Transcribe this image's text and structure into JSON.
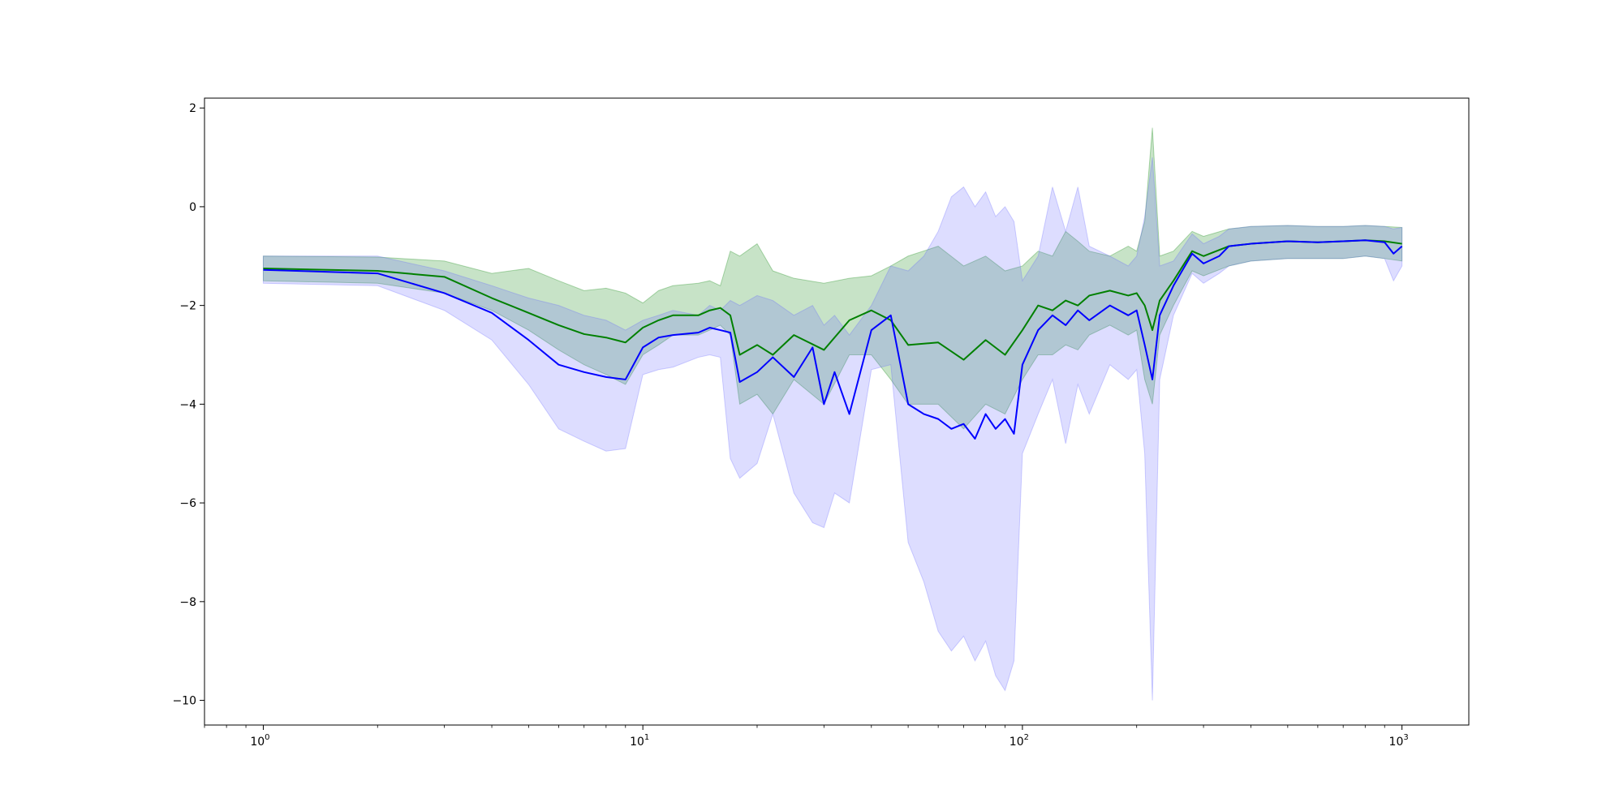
{
  "chart_data": {
    "type": "line",
    "title": "",
    "xlabel": "",
    "ylabel": "",
    "xscale": "log",
    "xlim": [
      0.7,
      1500
    ],
    "ylim": [
      -10.5,
      2.2
    ],
    "grid": false,
    "legend": "none",
    "x_ticks": [
      {
        "value": 1,
        "base": "10",
        "exp": "0"
      },
      {
        "value": 10,
        "base": "10",
        "exp": "1"
      },
      {
        "value": 100,
        "base": "10",
        "exp": "2"
      },
      {
        "value": 1000,
        "base": "10",
        "exp": "3"
      }
    ],
    "y_ticks": [
      {
        "value": 2,
        "label": "2"
      },
      {
        "value": 0,
        "label": "0"
      },
      {
        "value": -2,
        "label": "−2"
      },
      {
        "value": -4,
        "label": "−4"
      },
      {
        "value": -6,
        "label": "−6"
      },
      {
        "value": -8,
        "label": "−8"
      },
      {
        "value": -10,
        "label": "−10"
      }
    ],
    "series": [
      {
        "color": "#008000",
        "band_color": "#008000",
        "x": [
          1,
          2,
          3,
          4,
          5,
          6,
          7,
          8,
          9,
          10,
          11,
          12,
          14,
          15,
          16,
          17,
          18,
          20,
          22,
          25,
          30,
          35,
          40,
          45,
          50,
          60,
          70,
          80,
          90,
          100,
          110,
          120,
          130,
          140,
          150,
          170,
          190,
          200,
          210,
          220,
          230,
          250,
          280,
          300,
          350,
          400,
          500,
          600,
          700,
          800,
          900,
          1000
        ],
        "y": [
          -1.25,
          -1.3,
          -1.42,
          -1.85,
          -2.15,
          -2.4,
          -2.58,
          -2.65,
          -2.75,
          -2.45,
          -2.3,
          -2.2,
          -2.2,
          -2.1,
          -2.05,
          -2.2,
          -3.0,
          -2.8,
          -3.0,
          -2.6,
          -2.9,
          -2.3,
          -2.1,
          -2.3,
          -2.8,
          -2.75,
          -3.1,
          -2.7,
          -3.0,
          -2.5,
          -2.0,
          -2.1,
          -1.9,
          -2.0,
          -1.8,
          -1.7,
          -1.8,
          -1.75,
          -2.0,
          -2.5,
          -1.9,
          -1.5,
          -0.9,
          -1.0,
          -0.8,
          -0.75,
          -0.7,
          -0.72,
          -0.7,
          -0.68,
          -0.7,
          -0.75
        ],
        "lower": [
          -1.5,
          -1.55,
          -1.75,
          -2.1,
          -2.5,
          -2.9,
          -3.2,
          -3.4,
          -3.6,
          -3.0,
          -2.8,
          -2.6,
          -2.6,
          -2.5,
          -2.4,
          -2.6,
          -4.0,
          -3.8,
          -4.2,
          -3.5,
          -4.0,
          -3.0,
          -3.0,
          -3.5,
          -4.0,
          -4.0,
          -4.5,
          -4.0,
          -4.2,
          -3.5,
          -3.0,
          -3.0,
          -2.8,
          -2.9,
          -2.6,
          -2.4,
          -2.6,
          -2.5,
          -3.5,
          -4.0,
          -2.6,
          -2.0,
          -1.3,
          -1.4,
          -1.2,
          -1.1,
          -1.05,
          -1.05,
          -1.05,
          -1.0,
          -1.05,
          -1.1
        ],
        "upper": [
          -1.0,
          -1.02,
          -1.1,
          -1.35,
          -1.25,
          -1.5,
          -1.7,
          -1.65,
          -1.75,
          -1.95,
          -1.7,
          -1.6,
          -1.55,
          -1.5,
          -1.6,
          -0.9,
          -1.0,
          -0.75,
          -1.3,
          -1.45,
          -1.55,
          -1.45,
          -1.4,
          -1.2,
          -1.0,
          -0.8,
          -1.2,
          -1.0,
          -1.3,
          -1.2,
          -0.9,
          -1.0,
          -0.5,
          -0.7,
          -0.9,
          -1.0,
          -0.8,
          -0.9,
          -0.3,
          1.6,
          -1.0,
          -0.9,
          -0.5,
          -0.6,
          -0.45,
          -0.4,
          -0.38,
          -0.4,
          -0.4,
          -0.38,
          -0.4,
          -0.42
        ]
      },
      {
        "color": "#0000ff",
        "band_color": "#6666ff",
        "x": [
          1,
          2,
          3,
          4,
          5,
          6,
          7,
          8,
          9,
          10,
          11,
          12,
          14,
          15,
          16,
          17,
          18,
          20,
          22,
          25,
          28,
          30,
          32,
          35,
          40,
          45,
          50,
          55,
          60,
          65,
          70,
          75,
          80,
          85,
          90,
          95,
          100,
          110,
          120,
          130,
          140,
          150,
          170,
          190,
          200,
          210,
          220,
          230,
          250,
          280,
          300,
          330,
          350,
          400,
          500,
          600,
          700,
          800,
          900,
          950,
          1000
        ],
        "y": [
          -1.28,
          -1.35,
          -1.75,
          -2.15,
          -2.7,
          -3.2,
          -3.35,
          -3.45,
          -3.5,
          -2.85,
          -2.65,
          -2.6,
          -2.55,
          -2.45,
          -2.5,
          -2.55,
          -3.55,
          -3.35,
          -3.05,
          -3.45,
          -2.85,
          -4.0,
          -3.35,
          -4.2,
          -2.5,
          -2.2,
          -4.0,
          -4.2,
          -4.3,
          -4.5,
          -4.4,
          -4.7,
          -4.2,
          -4.5,
          -4.3,
          -4.6,
          -3.2,
          -2.5,
          -2.2,
          -2.4,
          -2.1,
          -2.3,
          -2.0,
          -2.2,
          -2.1,
          -2.8,
          -3.5,
          -2.2,
          -1.6,
          -0.95,
          -1.15,
          -1.0,
          -0.8,
          -0.75,
          -0.7,
          -0.72,
          -0.7,
          -0.68,
          -0.72,
          -0.95,
          -0.8
        ],
        "lower": [
          -1.55,
          -1.6,
          -2.1,
          -2.7,
          -3.6,
          -4.5,
          -4.75,
          -4.95,
          -4.9,
          -3.4,
          -3.3,
          -3.25,
          -3.05,
          -3.0,
          -3.05,
          -5.1,
          -5.5,
          -5.2,
          -4.2,
          -5.8,
          -6.4,
          -6.5,
          -5.8,
          -6.0,
          -3.3,
          -3.2,
          -6.8,
          -7.6,
          -8.6,
          -9.0,
          -8.7,
          -9.2,
          -8.8,
          -9.5,
          -9.8,
          -9.2,
          -5.0,
          -4.2,
          -3.5,
          -4.8,
          -3.6,
          -4.2,
          -3.2,
          -3.5,
          -3.3,
          -5.0,
          -10.0,
          -3.5,
          -2.2,
          -1.35,
          -1.55,
          -1.35,
          -1.2,
          -1.1,
          -1.05,
          -1.05,
          -1.05,
          -1.0,
          -1.05,
          -1.5,
          -1.2
        ],
        "upper": [
          -1.0,
          -1.0,
          -1.3,
          -1.6,
          -1.85,
          -2.0,
          -2.2,
          -2.3,
          -2.5,
          -2.3,
          -2.2,
          -2.1,
          -2.2,
          -2.0,
          -2.1,
          -1.9,
          -2.0,
          -1.8,
          -1.9,
          -2.2,
          -2.0,
          -2.4,
          -2.2,
          -2.6,
          -2.0,
          -1.2,
          -1.3,
          -1.0,
          -0.5,
          0.2,
          0.4,
          0.0,
          0.3,
          -0.2,
          0.0,
          -0.3,
          -1.5,
          -1.0,
          0.4,
          -0.5,
          0.4,
          -0.8,
          -1.0,
          -1.2,
          -1.0,
          -0.2,
          1.0,
          -1.2,
          -1.1,
          -0.55,
          -0.75,
          -0.6,
          -0.45,
          -0.4,
          -0.38,
          -0.4,
          -0.4,
          -0.38,
          -0.4,
          -0.45,
          -0.42
        ]
      }
    ]
  }
}
